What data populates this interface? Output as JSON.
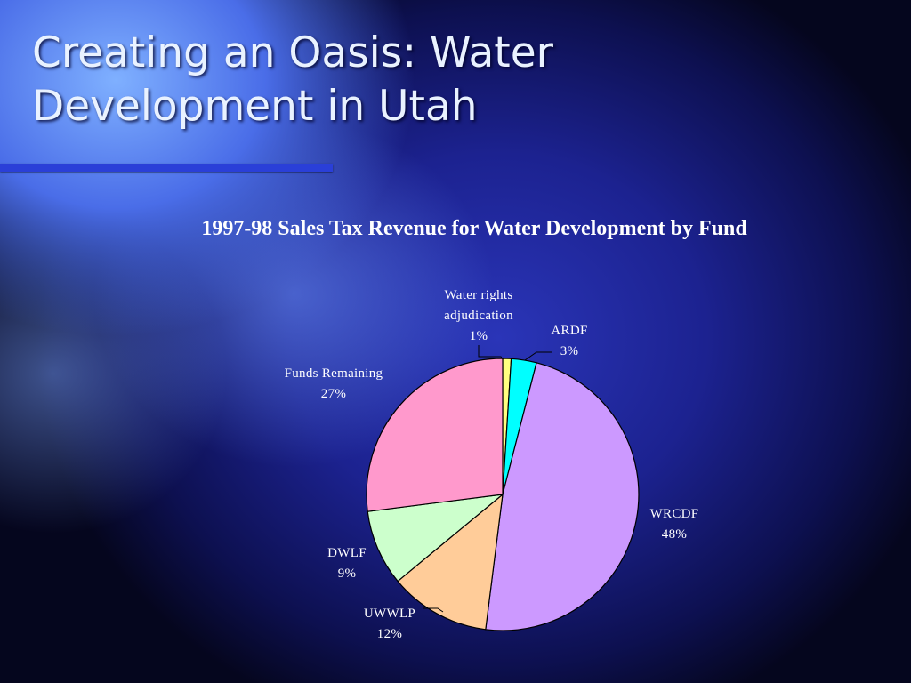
{
  "slide": {
    "title_line1": "Creating an Oasis: Water",
    "title_line2": "Development in Utah"
  },
  "chart_data": {
    "type": "pie",
    "title": "1997-98 Sales Tax Revenue for Water Development by Fund",
    "slices": [
      {
        "label": "Water rights adjudication",
        "label_lines": [
          "Water rights",
          "adjudication"
        ],
        "value": 1,
        "pct_label": "1%",
        "color": "#ffff80"
      },
      {
        "label": "ARDF",
        "label_lines": [
          "ARDF"
        ],
        "value": 3,
        "pct_label": "3%",
        "color": "#00ffff"
      },
      {
        "label": "WRCDF",
        "label_lines": [
          "WRCDF"
        ],
        "value": 48,
        "pct_label": "48%",
        "color": "#cc99ff"
      },
      {
        "label": "UWWLP",
        "label_lines": [
          "UWWLP"
        ],
        "value": 12,
        "pct_label": "12%",
        "color": "#ffcc99"
      },
      {
        "label": "DWLF",
        "label_lines": [
          "DWLF"
        ],
        "value": 9,
        "pct_label": "9%",
        "color": "#ccffcc"
      },
      {
        "label": "Funds Remaining",
        "label_lines": [
          "Funds Remaining"
        ],
        "value": 27,
        "pct_label": "27%",
        "color": "#ff99cc"
      }
    ],
    "legend": "none"
  }
}
